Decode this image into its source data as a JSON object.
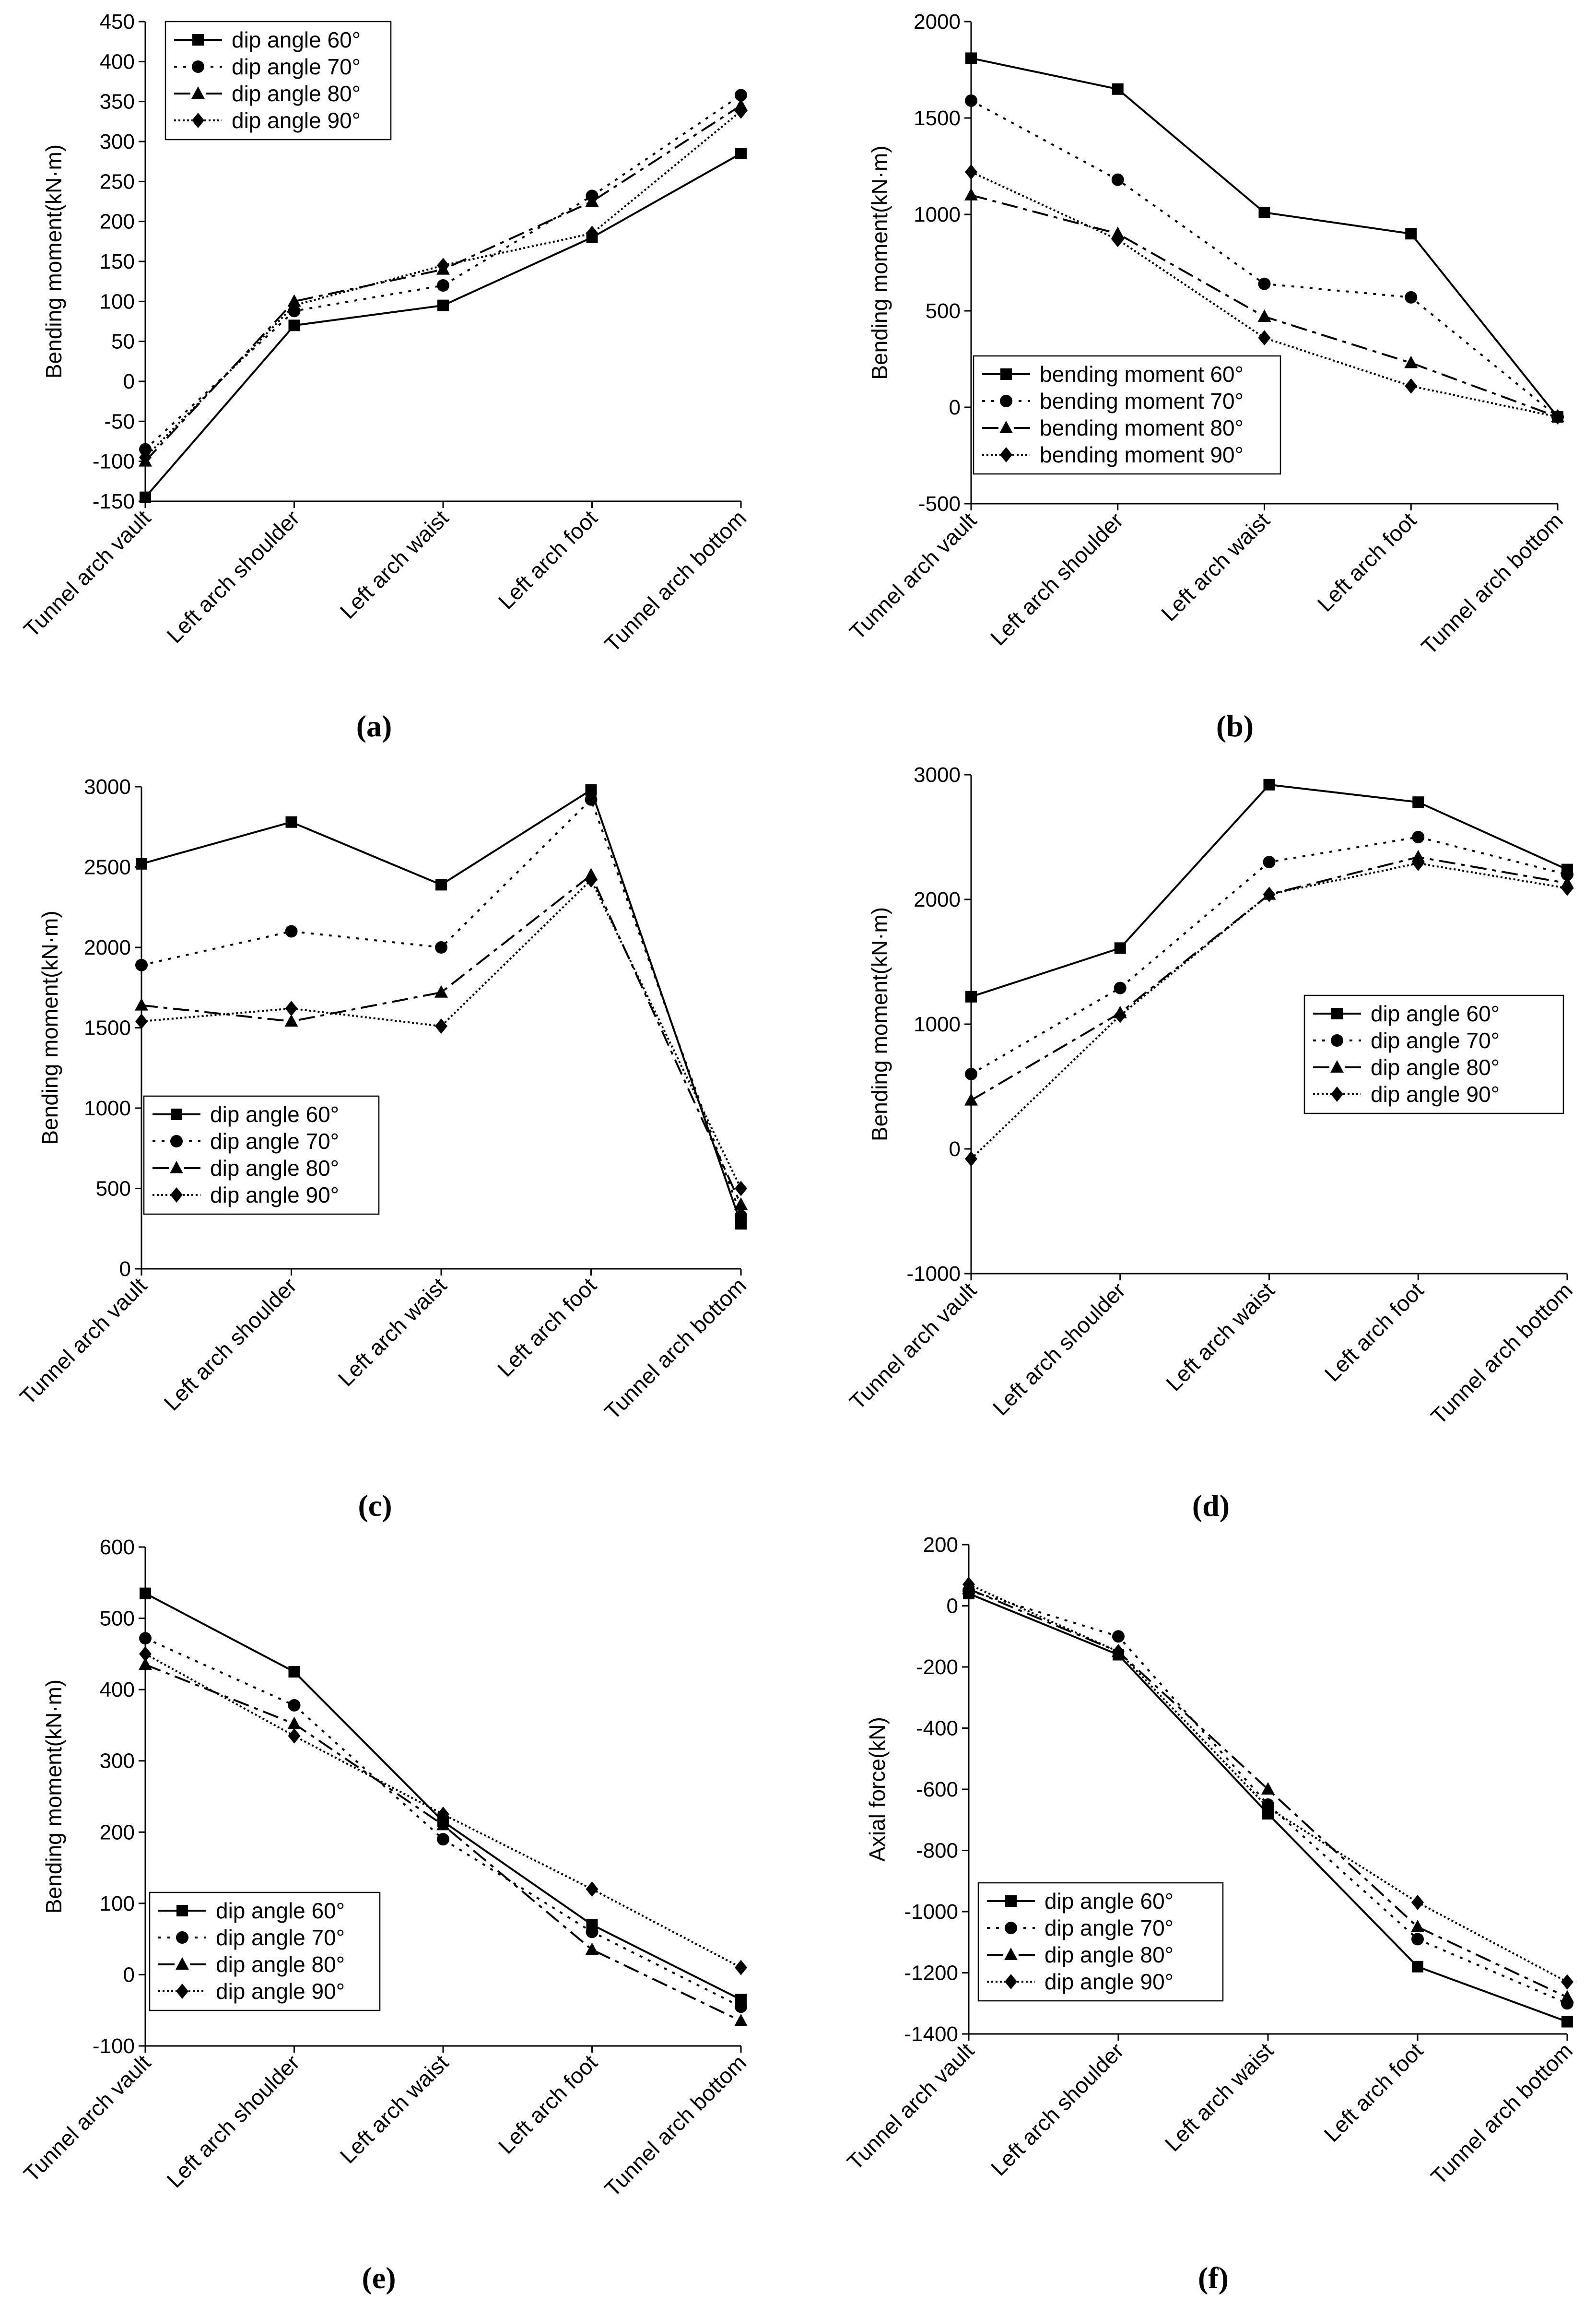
{
  "figure": {
    "panel_labels": [
      "(a)",
      "(b)",
      "(c)",
      "(d)",
      "(e)",
      "(f)"
    ]
  },
  "chart_data": [
    {
      "id": "a",
      "type": "line",
      "caption": "(a)",
      "ylabel": "Bending moment(kN·m)",
      "xlabel": "",
      "categories": [
        "Tunnel arch vault",
        "Left arch shoulder",
        "Left arch waist",
        "Left arch foot",
        "Tunnel arch bottom"
      ],
      "ylim": [
        -150,
        450
      ],
      "yticks": [
        -150,
        -100,
        -50,
        0,
        50,
        100,
        150,
        200,
        250,
        300,
        350,
        400,
        450
      ],
      "legend_position": "top-left",
      "series": [
        {
          "name": "dip angle 60°",
          "marker": "square",
          "dash": "solid",
          "values": [
            -145,
            70,
            95,
            180,
            285
          ]
        },
        {
          "name": "dip angle 70°",
          "marker": "circle",
          "dash": "dot",
          "values": [
            -85,
            88,
            120,
            232,
            358
          ]
        },
        {
          "name": "dip angle 80°",
          "marker": "triangle",
          "dash": "dashdot",
          "values": [
            -100,
            100,
            140,
            225,
            345
          ]
        },
        {
          "name": "dip angle 90°",
          "marker": "diamond",
          "dash": "fine",
          "values": [
            -95,
            95,
            145,
            185,
            338
          ]
        }
      ]
    },
    {
      "id": "b",
      "type": "line",
      "caption": "(b)",
      "ylabel": "Bending moment(kN·m)",
      "xlabel": "",
      "categories": [
        "Tunnel arch vault",
        "Left arch shoulder",
        "Left arch waist",
        "Left arch foot",
        "Tunnel arch bottom"
      ],
      "ylim": [
        -500,
        2000
      ],
      "yticks": [
        -500,
        0,
        500,
        1000,
        1500,
        2000
      ],
      "legend_position": "bottom-left",
      "series": [
        {
          "name": "bending moment 60°",
          "marker": "square",
          "dash": "solid",
          "values": [
            1810,
            1650,
            1010,
            900,
            -50
          ]
        },
        {
          "name": "bending moment 70°",
          "marker": "circle",
          "dash": "dot",
          "values": [
            1590,
            1180,
            640,
            570,
            -50
          ]
        },
        {
          "name": "bending moment 80°",
          "marker": "triangle",
          "dash": "dashdot",
          "values": [
            1100,
            900,
            470,
            230,
            -50
          ]
        },
        {
          "name": "bending moment 90°",
          "marker": "diamond",
          "dash": "fine",
          "values": [
            1220,
            870,
            360,
            110,
            -50
          ]
        }
      ]
    },
    {
      "id": "c",
      "type": "line",
      "caption": "(c)",
      "ylabel": "Bending moment(kN·m)",
      "xlabel": "",
      "categories": [
        "Tunnel arch vault",
        "Left arch shoulder",
        "Left arch waist",
        "Left arch foot",
        "Tunnel arch bottom"
      ],
      "ylim": [
        0,
        3000
      ],
      "yticks": [
        0,
        500,
        1000,
        1500,
        2000,
        2500,
        3000
      ],
      "legend_position": "bottom-left",
      "series": [
        {
          "name": "dip angle 60°",
          "marker": "square",
          "dash": "solid",
          "values": [
            2520,
            2780,
            2390,
            2980,
            280
          ]
        },
        {
          "name": "dip angle 70°",
          "marker": "circle",
          "dash": "dot",
          "values": [
            1890,
            2100,
            2000,
            2920,
            330
          ]
        },
        {
          "name": "dip angle 80°",
          "marker": "triangle",
          "dash": "dashdot",
          "values": [
            1640,
            1540,
            1720,
            2450,
            400
          ]
        },
        {
          "name": "dip angle 90°",
          "marker": "diamond",
          "dash": "fine",
          "values": [
            1540,
            1620,
            1510,
            2420,
            500
          ]
        }
      ]
    },
    {
      "id": "d",
      "type": "line",
      "caption": "(d)",
      "ylabel": "Bending moment(kN·m)",
      "xlabel": "",
      "categories": [
        "Tunnel arch vault",
        "Left arch shoulder",
        "Left arch waist",
        "Left arch foot",
        "Tunnel arch bottom"
      ],
      "ylim": [
        -1000,
        3000
      ],
      "yticks": [
        -1000,
        0,
        1000,
        2000,
        3000
      ],
      "legend_position": "middle-right",
      "series": [
        {
          "name": "dip angle 60°",
          "marker": "square",
          "dash": "solid",
          "values": [
            1220,
            1610,
            2920,
            2780,
            2240
          ]
        },
        {
          "name": "dip angle 70°",
          "marker": "circle",
          "dash": "dot",
          "values": [
            600,
            1290,
            2300,
            2500,
            2200
          ]
        },
        {
          "name": "dip angle 80°",
          "marker": "triangle",
          "dash": "dashdot",
          "values": [
            390,
            1090,
            2040,
            2340,
            2130
          ]
        },
        {
          "name": "dip angle 90°",
          "marker": "diamond",
          "dash": "fine",
          "values": [
            -80,
            1070,
            2040,
            2290,
            2090
          ]
        }
      ]
    },
    {
      "id": "e",
      "type": "line",
      "caption": "(e)",
      "ylabel": "Bending moment(kN·m)",
      "xlabel": "",
      "categories": [
        "Tunnel arch vault",
        "Left arch shoulder",
        "Left arch waist",
        "Left arch foot",
        "Tunnel arch bottom"
      ],
      "ylim": [
        -100,
        600
      ],
      "yticks": [
        -100,
        0,
        100,
        200,
        300,
        400,
        500,
        600
      ],
      "legend_position": "bottom-left",
      "series": [
        {
          "name": "dip angle 60°",
          "marker": "square",
          "dash": "solid",
          "values": [
            535,
            425,
            215,
            70,
            -35
          ]
        },
        {
          "name": "dip angle 70°",
          "marker": "circle",
          "dash": "dot",
          "values": [
            472,
            378,
            190,
            60,
            -45
          ]
        },
        {
          "name": "dip angle 80°",
          "marker": "triangle",
          "dash": "dashdot",
          "values": [
            435,
            352,
            210,
            35,
            -65
          ]
        },
        {
          "name": "dip angle 90°",
          "marker": "diamond",
          "dash": "fine",
          "values": [
            450,
            335,
            225,
            120,
            10
          ]
        }
      ]
    },
    {
      "id": "f",
      "type": "line",
      "caption": "(f)",
      "ylabel": "Axial force(kN)",
      "xlabel": "",
      "categories": [
        "Tunnel arch vault",
        "Left arch shoulder",
        "Left arch waist",
        "Left arch foot",
        "Tunnel arch bottom"
      ],
      "ylim": [
        -1400,
        200
      ],
      "yticks": [
        -1400,
        -1200,
        -1000,
        -800,
        -600,
        -400,
        -200,
        0,
        200
      ],
      "legend_position": "bottom-left",
      "series": [
        {
          "name": "dip angle 60°",
          "marker": "square",
          "dash": "solid",
          "values": [
            40,
            -160,
            -680,
            -1180,
            -1360
          ]
        },
        {
          "name": "dip angle 70°",
          "marker": "circle",
          "dash": "dot",
          "values": [
            50,
            -100,
            -650,
            -1090,
            -1300
          ]
        },
        {
          "name": "dip angle 80°",
          "marker": "triangle",
          "dash": "dashdot",
          "values": [
            55,
            -150,
            -600,
            -1050,
            -1280
          ]
        },
        {
          "name": "dip angle 90°",
          "marker": "diamond",
          "dash": "fine",
          "values": [
            70,
            -150,
            -660,
            -970,
            -1230
          ]
        }
      ]
    }
  ]
}
